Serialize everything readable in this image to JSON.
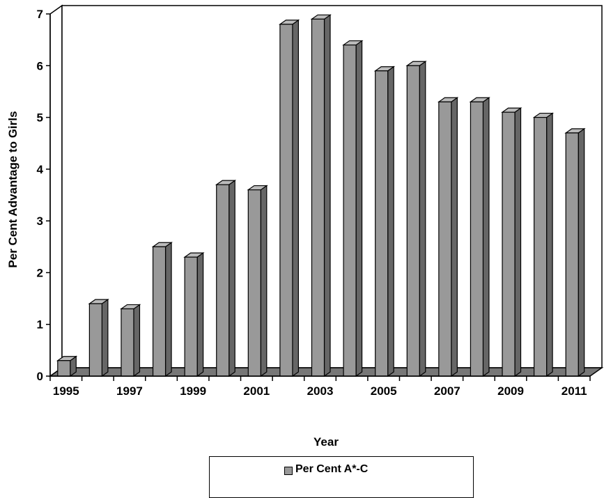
{
  "chart_data": {
    "type": "bar",
    "style": "3d-column",
    "categories": [
      "1995",
      "1996",
      "1997",
      "1998",
      "1999",
      "2000",
      "2001",
      "2002",
      "2003",
      "2004",
      "2005",
      "2006",
      "2007",
      "2008",
      "2009",
      "2010",
      "2011"
    ],
    "x_tick_labels": [
      "1995",
      "1997",
      "1999",
      "2001",
      "2003",
      "2005",
      "2007",
      "2009",
      "2011"
    ],
    "series": [
      {
        "name": "Per Cent A*-C",
        "color": "#999999",
        "values": [
          0.3,
          1.4,
          1.3,
          2.5,
          2.3,
          3.7,
          3.6,
          6.8,
          6.9,
          6.4,
          5.9,
          6.0,
          5.3,
          5.3,
          5.1,
          5.0,
          4.7
        ]
      }
    ],
    "xlabel": "Year",
    "ylabel": "Per Cent Advantage to Girls",
    "ylim": [
      0,
      7
    ],
    "yticks": [
      "0",
      "1",
      "2",
      "3",
      "4",
      "5",
      "6",
      "7"
    ],
    "grid": false,
    "legend_position": "bottom"
  }
}
